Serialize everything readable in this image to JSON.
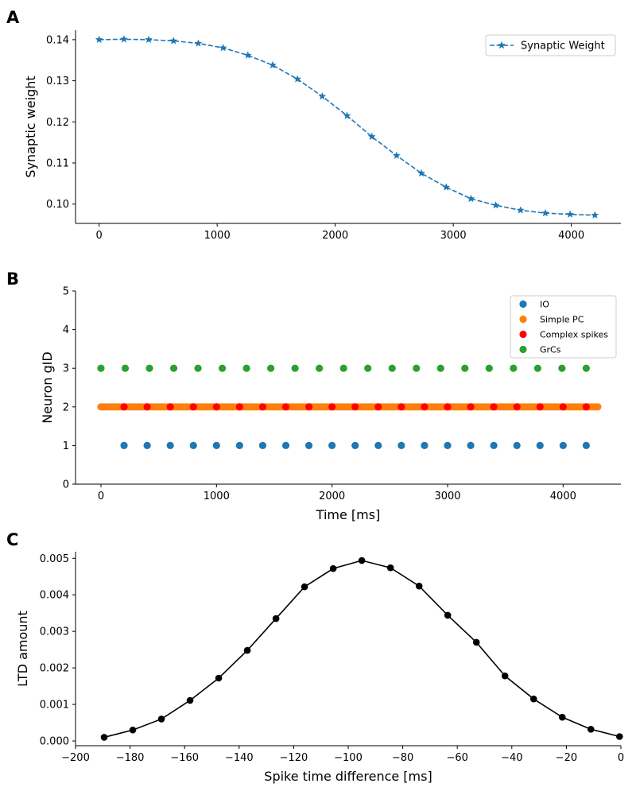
{
  "figure": {
    "panels": [
      {
        "letter": "A"
      },
      {
        "letter": "B"
      },
      {
        "letter": "C"
      }
    ]
  },
  "chart_data": [
    {
      "type": "line",
      "title": "",
      "xlabel": "",
      "ylabel": "Synaptic weight",
      "xlim": [
        -200,
        4420
      ],
      "ylim": [
        0.0953,
        0.1423
      ],
      "xticks": [
        0,
        1000,
        2000,
        3000,
        4000
      ],
      "yticks": [
        0.1,
        0.11,
        0.12,
        0.13,
        0.14
      ],
      "grid": false,
      "legend_position": "top-right",
      "series": [
        {
          "name": "Synaptic Weight",
          "color": "#1f77b4",
          "line_style": "dashed",
          "marker": "star",
          "x": [
            0,
            210,
            420,
            630,
            840,
            1050,
            1260,
            1470,
            1680,
            1890,
            2100,
            2310,
            2520,
            2730,
            2940,
            3150,
            3360,
            3570,
            3780,
            3990,
            4200
          ],
          "y": [
            0.14,
            0.1401,
            0.14,
            0.1397,
            0.1391,
            0.138,
            0.1362,
            0.1338,
            0.1304,
            0.1262,
            0.1215,
            0.1164,
            0.1118,
            0.1075,
            0.1041,
            0.1013,
            0.0997,
            0.0985,
            0.0978,
            0.0975,
            0.0973
          ]
        }
      ]
    },
    {
      "type": "scatter",
      "title": "",
      "xlabel": "Time [ms]",
      "ylabel": "Neuron gID",
      "xlim": [
        -220,
        4500
      ],
      "ylim": [
        0,
        5
      ],
      "xticks": [
        0,
        1000,
        2000,
        3000,
        4000
      ],
      "yticks": [
        0,
        1,
        2,
        3,
        4,
        5
      ],
      "grid": false,
      "legend_position": "top-right",
      "series": [
        {
          "name": "IO",
          "color": "#1f77b4",
          "x": [
            200,
            400,
            600,
            800,
            1000,
            1200,
            1400,
            1600,
            1800,
            2000,
            2200,
            2400,
            2600,
            2800,
            3000,
            3200,
            3400,
            3600,
            3800,
            4000,
            4200
          ],
          "y": 1
        },
        {
          "name": "Simple PC",
          "color": "#ff7f0e",
          "x_range": [
            0,
            4300
          ],
          "x_step": 20,
          "y": 2
        },
        {
          "name": "Complex spikes",
          "color": "#ff0000",
          "x": [
            200,
            400,
            600,
            800,
            1000,
            1200,
            1400,
            1600,
            1800,
            2000,
            2200,
            2400,
            2600,
            2800,
            3000,
            3200,
            3400,
            3600,
            3800,
            4000,
            4200
          ],
          "y": 2
        },
        {
          "name": "GrCs",
          "color": "#2ca02c",
          "x": [
            0,
            210,
            420,
            630,
            840,
            1050,
            1260,
            1470,
            1680,
            1890,
            2100,
            2310,
            2520,
            2730,
            2940,
            3150,
            3360,
            3570,
            3780,
            3990,
            4200
          ],
          "y": 3
        }
      ]
    },
    {
      "type": "line",
      "title": "",
      "xlabel": "Spike time difference [ms]",
      "ylabel": "LTD amount",
      "xlim": [
        -200,
        0
      ],
      "ylim": [
        -0.00013,
        0.00518
      ],
      "xticks": [
        -200,
        -180,
        -160,
        -140,
        -120,
        -100,
        -80,
        -60,
        -40,
        -20,
        0
      ],
      "xtick_labels": [
        "−200",
        "−180",
        "−160",
        "−140",
        "−120",
        "−100",
        "−80",
        "−60",
        "−40",
        "−20",
        "0"
      ],
      "yticks": [
        0.0,
        0.001,
        0.002,
        0.003,
        0.004,
        0.005
      ],
      "ytick_labels": [
        "0.000",
        "0.001",
        "0.002",
        "0.003",
        "0.004",
        "0.005"
      ],
      "grid": false,
      "series": [
        {
          "color": "#000000",
          "line_style": "solid",
          "marker": "circle",
          "x": [
            -189.5,
            -179.0,
            -168.5,
            -158.0,
            -147.5,
            -137.0,
            -126.5,
            -116.0,
            -105.5,
            -95.0,
            -84.5,
            -74.0,
            -63.5,
            -53.0,
            -42.5,
            -32.0,
            -21.5,
            -11.0,
            -0.5
          ],
          "y": [
            0.0001,
            0.0003,
            0.0006,
            0.00111,
            0.00172,
            0.00248,
            0.00335,
            0.00422,
            0.00472,
            0.00494,
            0.00474,
            0.00424,
            0.00344,
            0.0027,
            0.00178,
            0.00115,
            0.00065,
            0.00032,
            0.00012
          ]
        }
      ]
    }
  ]
}
